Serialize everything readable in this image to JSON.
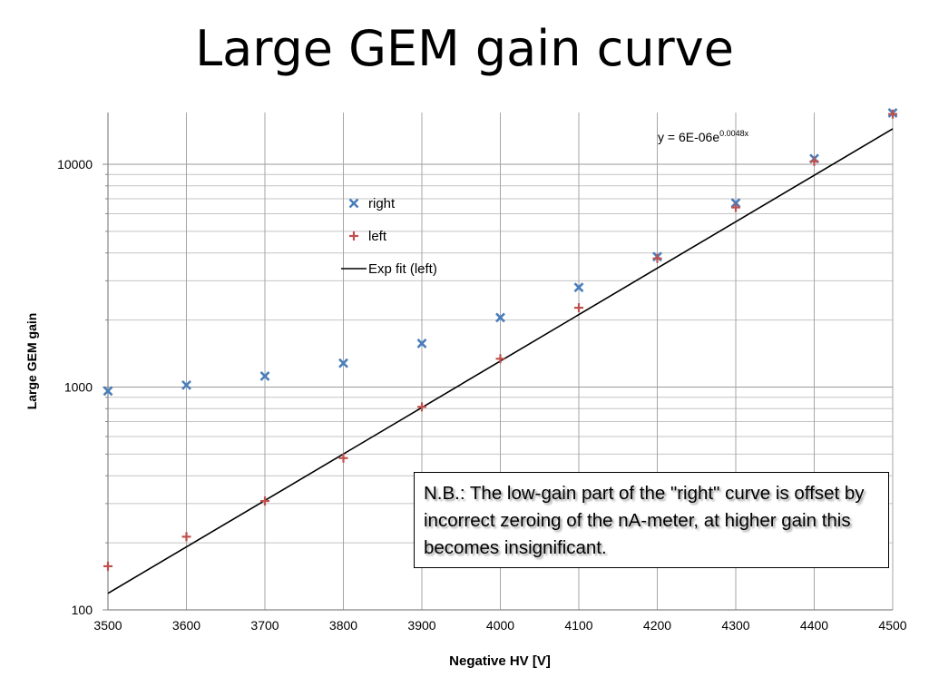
{
  "title": "Large GEM gain curve",
  "note": "N.B.: The low-gain part of the \"right\" curve is offset by incorrect zeroing of the nA-meter, at higher gain this becomes insignificant.",
  "colors": {
    "right": "#4A7EBB",
    "left": "#C0504D",
    "fit": "#000000",
    "grid": "#A6A6A6",
    "axis": "#868686"
  },
  "chart_data": {
    "type": "scatter",
    "xlabel": "Negative HV [V]",
    "ylabel": "Large GEM gain",
    "xlim": [
      3500,
      4500
    ],
    "ylim": [
      100,
      17000
    ],
    "yscale": "log",
    "grid": true,
    "x_ticks": [
      "3500",
      "3600",
      "3700",
      "3800",
      "3900",
      "4000",
      "4100",
      "4200",
      "4300",
      "4400",
      "4500"
    ],
    "y_ticks": [
      "100",
      "1000",
      "10000"
    ],
    "legend_position": "center-left",
    "series": [
      {
        "name": "right",
        "marker": "x",
        "x": [
          3500,
          3600,
          3700,
          3800,
          3900,
          4000,
          4100,
          4200,
          4300,
          4400,
          4500
        ],
        "y": [
          960,
          1020,
          1120,
          1280,
          1570,
          2050,
          2800,
          3850,
          6700,
          10600,
          17000
        ]
      },
      {
        "name": "left",
        "marker": "+",
        "x": [
          3500,
          3600,
          3700,
          3800,
          3900,
          4000,
          4100,
          4200,
          4300,
          4400,
          4500
        ],
        "y": [
          157,
          213,
          308,
          480,
          815,
          1340,
          2270,
          3780,
          6400,
          10300,
          16800
        ]
      }
    ],
    "fit": {
      "name": "Exp fit (left)",
      "label": "y = 6E-06e",
      "label_exp": "0.0048x",
      "a": 6e-06,
      "b": 0.0048
    }
  }
}
